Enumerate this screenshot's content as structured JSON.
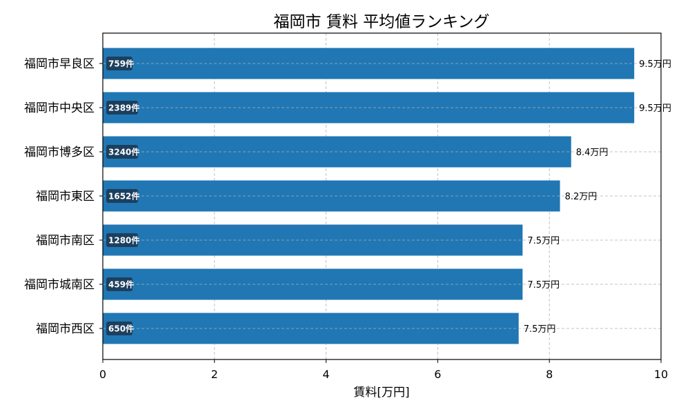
{
  "chart_data": {
    "type": "bar",
    "orientation": "horizontal",
    "title": "福岡市 賃料 平均値ランキング",
    "xlabel": "賃料[万円]",
    "ylabel": "",
    "xlim": [
      0,
      10
    ],
    "xticks": [
      "0",
      "2",
      "4",
      "6",
      "8",
      "10"
    ],
    "grid": true,
    "categories": [
      "福岡市早良区",
      "福岡市中央区",
      "福岡市博多区",
      "福岡市東区",
      "福岡市南区",
      "福岡市城南区",
      "福岡市西区"
    ],
    "values": [
      9.52,
      9.52,
      8.39,
      8.19,
      7.52,
      7.52,
      7.45
    ],
    "value_labels": [
      "9.5万円",
      "9.5万円",
      "8.4万円",
      "8.2万円",
      "7.5万円",
      "7.5万円",
      "7.5万円"
    ],
    "count_labels": [
      "759件",
      "2389件",
      "3240件",
      "1652件",
      "1280件",
      "459件",
      "650件"
    ],
    "colors": {
      "bar": "#2077b4",
      "count_badge": "#1c3f5e",
      "grid": "#b0b0b0",
      "axis": "#000000"
    }
  }
}
